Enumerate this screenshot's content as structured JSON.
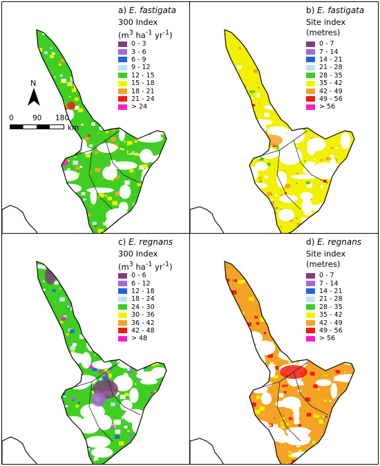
{
  "panels": [
    {
      "id": "a",
      "prefix": "a) ",
      "species": "E. fastigata",
      "subtitle_html": "300 Index<br>(m<sup>3</sup> ha<sup>-1</sup> yr<sup>-1</sup>)",
      "subtitle_text": "300 Index (m3 ha-1 yr-1)",
      "legend": [
        {
          "label": "0 - 3",
          "color": "#7e3f78"
        },
        {
          "label": "3 - 6",
          "color": "#a569d6"
        },
        {
          "label": "6 - 9",
          "color": "#1f63e0"
        },
        {
          "label": "9 - 12",
          "color": "#bce2f5"
        },
        {
          "label": "12 - 15",
          "color": "#3fcf22"
        },
        {
          "label": "15 - 18",
          "color": "#f2f200"
        },
        {
          "label": "18 - 21",
          "color": "#f5a326"
        },
        {
          "label": "21 - 24",
          "color": "#f21b0a"
        },
        {
          "label": "> 24",
          "color": "#ff1ec6"
        }
      ]
    },
    {
      "id": "b",
      "prefix": "b) ",
      "species": "E. fastigata",
      "subtitle_html": "Site index<br>(metres)",
      "subtitle_text": "Site index (metres)",
      "legend": [
        {
          "label": "0 - 7",
          "color": "#7e3f78"
        },
        {
          "label": "7 - 14",
          "color": "#a569d6"
        },
        {
          "label": "14 - 21",
          "color": "#1f63e0"
        },
        {
          "label": "21 - 28",
          "color": "#bce2f5"
        },
        {
          "label": "28 - 35",
          "color": "#3fcf22"
        },
        {
          "label": "35 - 42",
          "color": "#f2f200"
        },
        {
          "label": "42 - 49",
          "color": "#f5a326"
        },
        {
          "label": "49 - 56",
          "color": "#f21b0a"
        },
        {
          "label": "> 56",
          "color": "#ff1ec6"
        }
      ]
    },
    {
      "id": "c",
      "prefix": "c) ",
      "species": "E. regnans",
      "subtitle_html": "300 Index<br>(m<sup>3</sup> ha<sup>-1</sup> yr<sup>-1</sup>)",
      "subtitle_text": "300 Index (m3 ha-1 yr-1)",
      "legend": [
        {
          "label": "0 - 6",
          "color": "#7e3f78"
        },
        {
          "label": "6 - 12",
          "color": "#a569d6"
        },
        {
          "label": "12 - 18",
          "color": "#1f63e0"
        },
        {
          "label": "18 - 24",
          "color": "#bce2f5"
        },
        {
          "label": "24 - 30",
          "color": "#3fcf22"
        },
        {
          "label": "30 - 36",
          "color": "#f2f200"
        },
        {
          "label": "36 - 42",
          "color": "#f5a326"
        },
        {
          "label": "42 - 48",
          "color": "#f21b0a"
        },
        {
          "label": "> 48",
          "color": "#ff1ec6"
        }
      ]
    },
    {
      "id": "d",
      "prefix": "d) ",
      "species": "E. regnans",
      "subtitle_html": "Site index<br>(metres)",
      "subtitle_text": "Site index (metres)",
      "legend": [
        {
          "label": "0 - 7",
          "color": "#7e3f78"
        },
        {
          "label": "7 - 14",
          "color": "#a569d6"
        },
        {
          "label": "14 - 21",
          "color": "#1f63e0"
        },
        {
          "label": "21 - 28",
          "color": "#bce2f5"
        },
        {
          "label": "28 - 35",
          "color": "#3fcf22"
        },
        {
          "label": "35 - 42",
          "color": "#f2f200"
        },
        {
          "label": "42 - 49",
          "color": "#f5a326"
        },
        {
          "label": "49 - 56",
          "color": "#f21b0a"
        },
        {
          "label": "> 56",
          "color": "#ff1ec6"
        }
      ]
    }
  ],
  "north_arrow": {
    "label": "N"
  },
  "scale_bar": {
    "ticks": [
      "0",
      "90",
      "180"
    ],
    "unit": "km"
  }
}
